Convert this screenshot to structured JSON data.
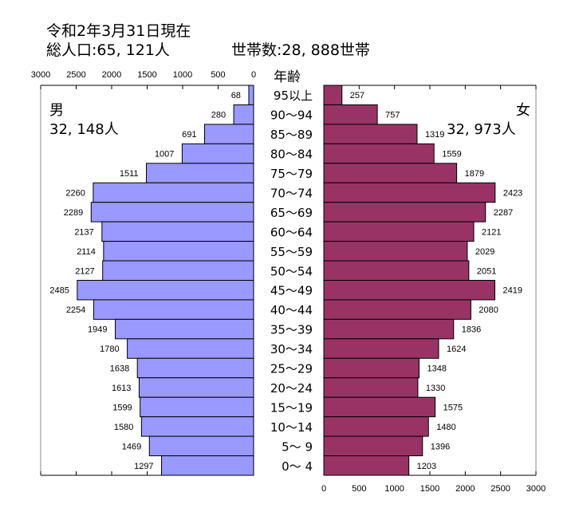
{
  "header": {
    "date": "令和2年3月31日現在",
    "population": "総人口:65, 121人",
    "households": "世帯数:28, 888世帯"
  },
  "chart_data": {
    "type": "bar",
    "orientation": "population-pyramid",
    "age_axis_label": "年齢",
    "categories": [
      "95以上",
      "90～94",
      "85～89",
      "80～84",
      "75～79",
      "70～74",
      "65～69",
      "60～64",
      "55～59",
      "50～54",
      "45～49",
      "40～44",
      "35～39",
      "30～34",
      "25～29",
      "20～24",
      "15～19",
      "10～14",
      "5～ 9",
      "0～ 4"
    ],
    "series": [
      {
        "name": "男",
        "total_label": "32, 148人",
        "color": "#9999ff",
        "side": "left",
        "values": [
          68,
          280,
          691,
          1007,
          1511,
          2260,
          2289,
          2137,
          2114,
          2127,
          2485,
          2254,
          1949,
          1780,
          1638,
          1613,
          1599,
          1580,
          1469,
          1297
        ]
      },
      {
        "name": "女",
        "total_label": "32, 973人",
        "color": "#993366",
        "side": "right",
        "values": [
          257,
          757,
          1319,
          1559,
          1879,
          2423,
          2287,
          2121,
          2029,
          2051,
          2419,
          2080,
          1836,
          1624,
          1348,
          1330,
          1575,
          1480,
          1396,
          1203
        ]
      }
    ],
    "xlim": [
      0,
      3000
    ],
    "x_ticks": [
      0,
      500,
      1000,
      1500,
      2000,
      2500,
      3000
    ],
    "grid": false
  }
}
